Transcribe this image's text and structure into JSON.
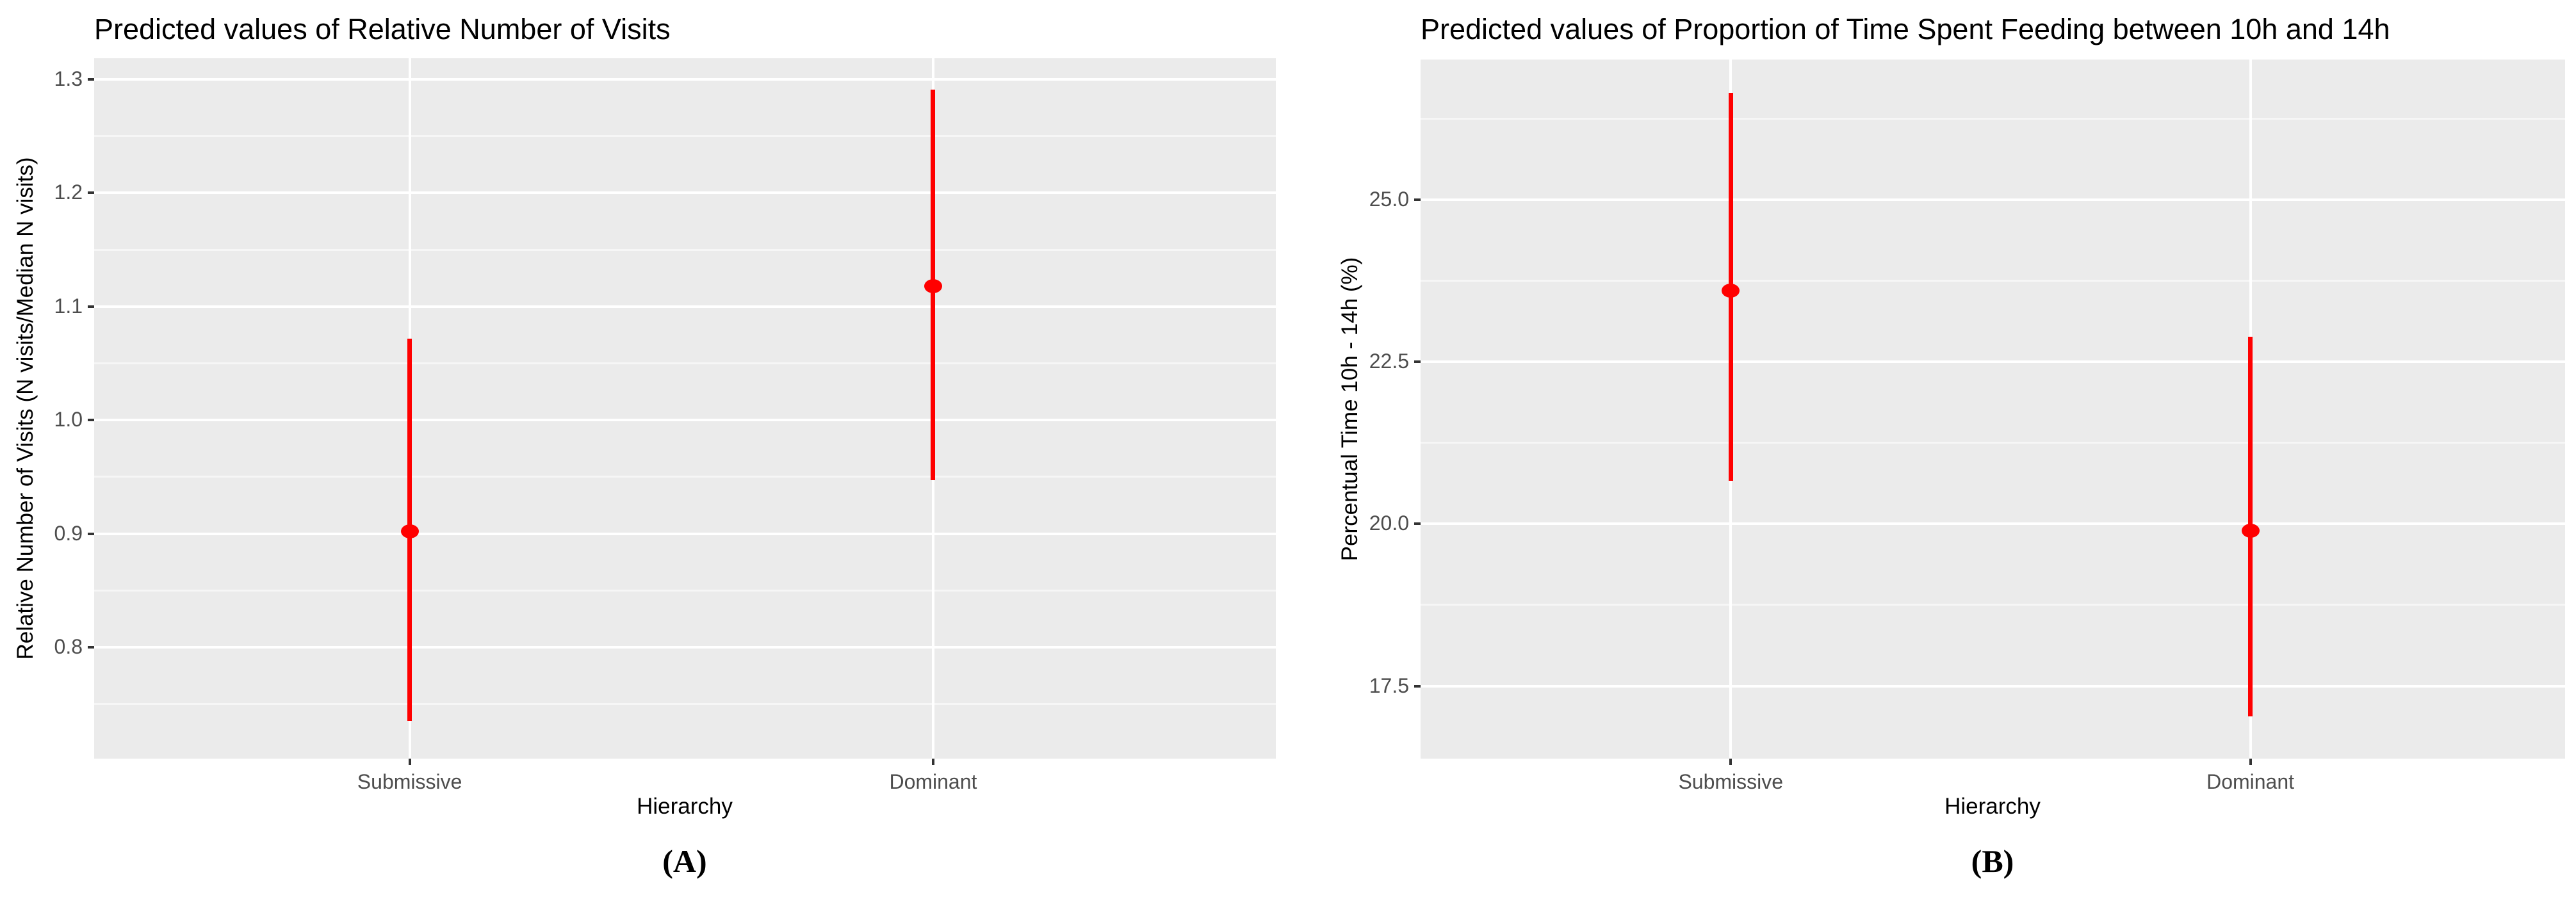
{
  "figure": {
    "background": "#ffffff",
    "panel_background": "#ebebeb",
    "grid_color": "#ffffff",
    "tick_color": "#333333",
    "tick_label_color": "#4d4d4d",
    "text_color": "#000000",
    "point_color": "#ff0000"
  },
  "chart_data": [
    {
      "type": "scatter",
      "subtype": "pointrange",
      "panel": "A",
      "caption": "(A)",
      "title": "Predicted values of Relative Number of Visits",
      "xlabel": "Hierarchy",
      "ylabel": "Relative Number of Visits (N visits/Median N visits)",
      "categories": [
        "Submissive",
        "Dominant"
      ],
      "points": [
        {
          "category": "Submissive",
          "value": 0.902,
          "ci_low": 0.735,
          "ci_high": 1.072
        },
        {
          "category": "Dominant",
          "value": 1.118,
          "ci_low": 0.947,
          "ci_high": 1.291
        }
      ],
      "yticks": [
        1.3,
        1.2,
        1.1,
        1.0,
        0.9,
        0.8
      ],
      "ytick_labels": [
        "1.3",
        "1.2",
        "1.1",
        "1.0",
        "0.9",
        "0.8"
      ],
      "yminor": [
        1.25,
        1.15,
        1.05,
        0.95,
        0.85,
        0.75
      ],
      "ylim": [
        0.702,
        1.3186
      ],
      "grid": "on",
      "legend": "none",
      "point_color": "#ff0000"
    },
    {
      "type": "scatter",
      "subtype": "pointrange",
      "panel": "B",
      "caption": "(B)",
      "title": "Predicted values of Proportion of Time Spent Feeding between 10h and 14h",
      "xlabel": "Hierarchy",
      "ylabel": "Percentual Time 10h - 14h (%)",
      "categories": [
        "Submissive",
        "Dominant"
      ],
      "points": [
        {
          "category": "Submissive",
          "value": 23.6,
          "ci_low": 20.66,
          "ci_high": 26.65
        },
        {
          "category": "Dominant",
          "value": 19.89,
          "ci_low": 17.03,
          "ci_high": 22.89
        }
      ],
      "yticks": [
        25.0,
        22.5,
        20.0,
        17.5
      ],
      "ytick_labels": [
        "25.0",
        "22.5",
        "20.0",
        "17.5"
      ],
      "yminor": [
        26.25,
        23.75,
        21.25,
        18.75
      ],
      "ylim": [
        16.38,
        27.16
      ],
      "grid": "on",
      "legend": "none",
      "point_color": "#ff0000"
    }
  ]
}
